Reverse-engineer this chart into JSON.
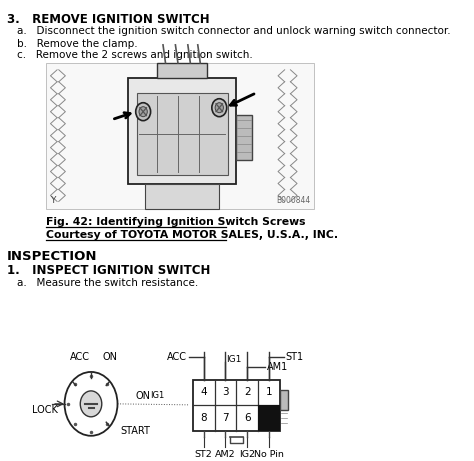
{
  "bg_color": "#ffffff",
  "section3_title": "3.   REMOVE IGNITION SWITCH",
  "step_a": "a.   Disconnect the ignition switch connector and unlock warning switch connector.",
  "step_b": "b.   Remove the clamp.",
  "step_c": "c.   Remove the 2 screws and ignition switch.",
  "fig_caption1": "Fig. 42: Identifying Ignition Switch Screws",
  "fig_caption2": "Courtesy of TOYOTA MOTOR SALES, U.S.A., INC.",
  "inspection_title": "INSPECTION",
  "section1_title": "1.   INSPECT IGNITION SWITCH",
  "step_a2": "a.   Measure the switch resistance.",
  "label_acc_dial": "ACC",
  "label_lock": "LOCK",
  "label_on": "ON",
  "label_ig1": "IG1",
  "label_start": "START",
  "label_acc_conn": "ACC",
  "label_am1": "AM1",
  "label_st1": "ST1",
  "label_st2": "ST2",
  "label_am2": "AM2",
  "label_ig2": "IG2",
  "label_nopin": "No Pin",
  "conn_numbers_top": [
    "4",
    "3",
    "2",
    "1"
  ],
  "conn_numbers_bot": [
    "8",
    "7",
    "6"
  ],
  "text_color": "#000000",
  "line_color": "#000000"
}
